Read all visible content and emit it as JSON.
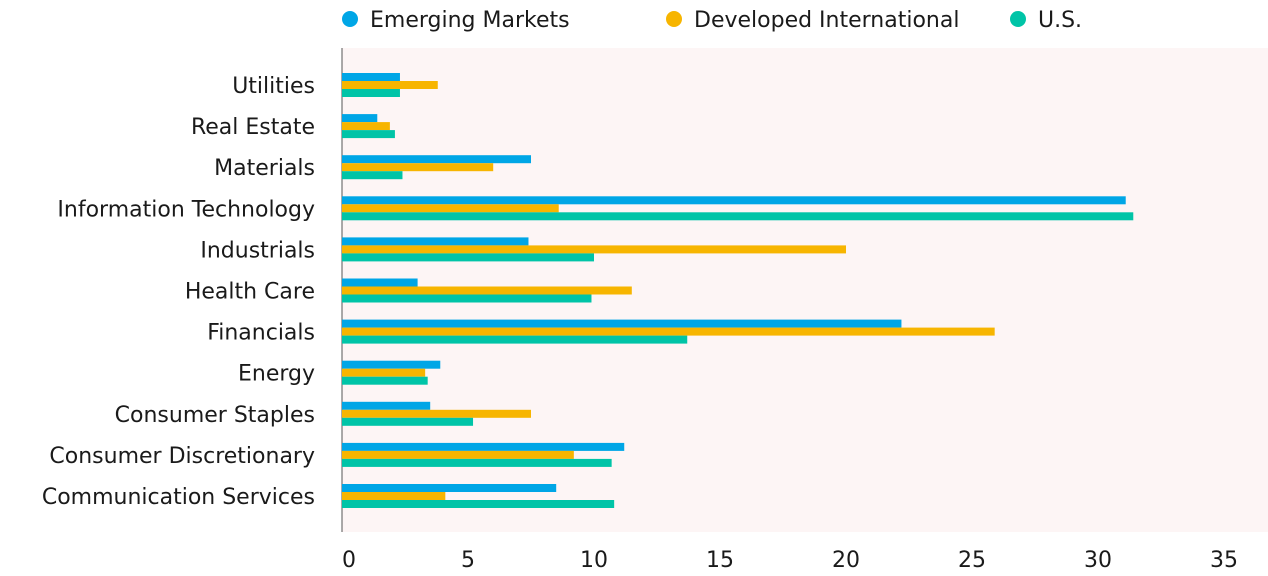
{
  "chart_data": {
    "type": "bar",
    "orientation": "horizontal",
    "categories": [
      "Utilities",
      "Real Estate",
      "Materials",
      "Information Technology",
      "Industrials",
      "Health Care",
      "Financials",
      "Energy",
      "Consumer Staples",
      "Consumer Discretionary",
      "Communication Services"
    ],
    "series": [
      {
        "name": "Emerging Markets",
        "color": "#00a6e6",
        "values": [
          2.3,
          1.4,
          7.5,
          31.1,
          7.4,
          3.0,
          22.2,
          3.9,
          3.5,
          11.2,
          8.5
        ]
      },
      {
        "name": "Developed International",
        "color": "#f7b500",
        "values": [
          3.8,
          1.9,
          6.0,
          8.6,
          20.0,
          11.5,
          25.9,
          3.3,
          7.5,
          9.2,
          4.1
        ]
      },
      {
        "name": "U.S.",
        "color": "#00c4a7",
        "values": [
          2.3,
          2.1,
          2.4,
          31.4,
          10.0,
          9.9,
          13.7,
          3.4,
          5.2,
          10.7,
          10.8
        ]
      }
    ],
    "xlim": [
      0,
      36.7
    ],
    "xticks": [
      "0",
      "5",
      "10",
      "15",
      "20",
      "25",
      "30",
      "35"
    ],
    "legend_position": "top",
    "grid": false,
    "plot_background": "#fdf5f5"
  }
}
